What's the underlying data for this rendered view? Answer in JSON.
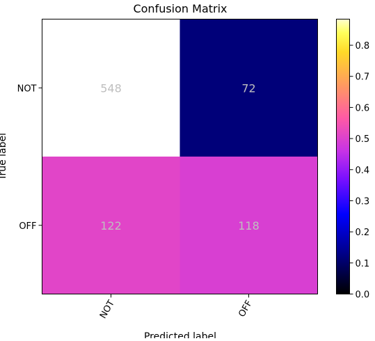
{
  "chart_data": {
    "type": "heatmap",
    "title": "Confusion Matrix",
    "xlabel": "Predicted label",
    "ylabel": "True label",
    "x_categories": [
      "NOT",
      "OFF"
    ],
    "y_categories": [
      "NOT",
      "OFF"
    ],
    "values": [
      [
        548,
        72
      ],
      [
        122,
        118
      ]
    ],
    "normalized": [
      [
        0.884,
        0.116
      ],
      [
        0.508,
        0.492
      ]
    ],
    "colormap": "gnuplot2",
    "colorbar": {
      "range": [
        0,
        0.884
      ],
      "ticks": [
        0.0,
        0.1,
        0.2,
        0.3,
        0.4,
        0.5,
        0.6,
        0.7,
        0.8
      ],
      "tick_labels": [
        "0.0",
        "0.1",
        "0.2",
        "0.3",
        "0.4",
        "0.5",
        "0.6",
        "0.7",
        "0.8"
      ]
    },
    "cell_label_color": "#bfbfbf",
    "grid": false
  }
}
